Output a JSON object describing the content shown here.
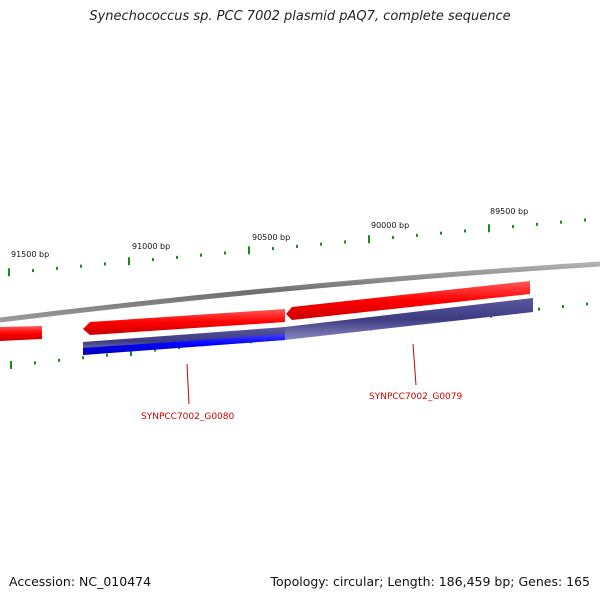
{
  "title": "Synechococcus sp. PCC 7002 plasmid pAQ7, complete sequence",
  "accession": "Accession: NC_010474",
  "summary": "Topology: circular; Length: 186,459 bp; Genes: 165",
  "ruler_labels": [
    {
      "bp": 91500,
      "label": "91500 bp"
    },
    {
      "bp": 91000,
      "label": "91000 bp"
    },
    {
      "bp": 90500,
      "label": "90500 bp"
    },
    {
      "bp": 90000,
      "label": "90000 bp"
    },
    {
      "bp": 89500,
      "label": "89500 bp"
    }
  ],
  "genes": [
    {
      "locus": "SYNPCC7002_G0080",
      "color": "#cc0000"
    },
    {
      "locus": "SYNPCC7002_G0079",
      "color": "#cc0000"
    }
  ],
  "colors": {
    "backbone": "#7a7a7a",
    "cds": "#ff0000",
    "gene_alignment": "#3d3b80",
    "gene_alignment_highlight": "#0000ff",
    "ticks": "#1a8a1a",
    "label_line": "#cc0000"
  }
}
